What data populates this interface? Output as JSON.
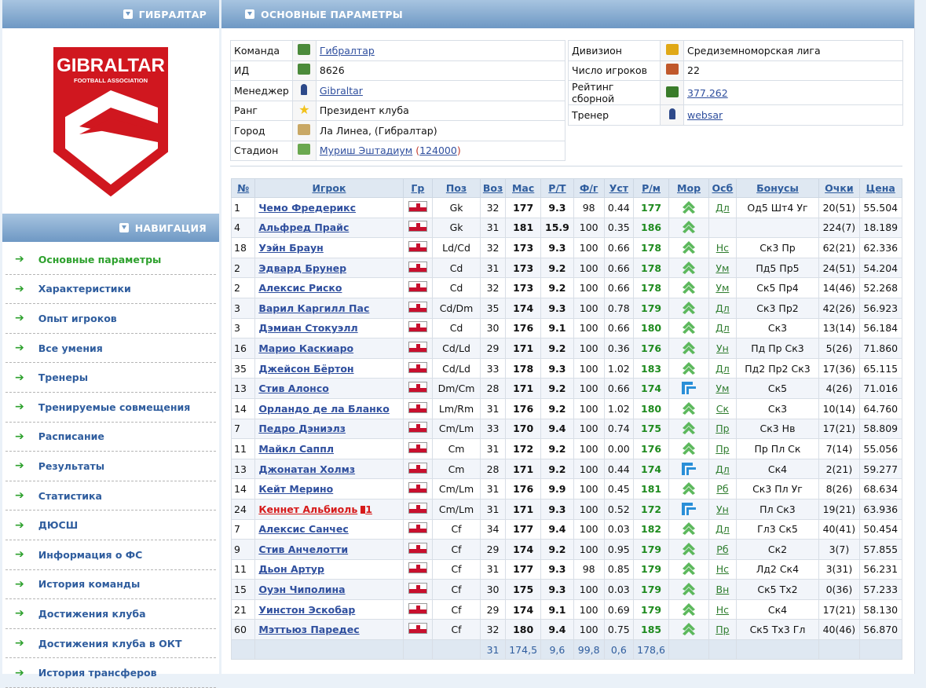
{
  "left_header": "ГИБРАЛТАР",
  "logo": {
    "line1": "GIBRALTAR",
    "line2": "FOOTBALL ASSOCIATION",
    "colors": {
      "red": "#d0171f",
      "white": "#ffffff"
    }
  },
  "nav_header": "НАВИГАЦИЯ",
  "nav": [
    "Основные параметры",
    "Характеристики",
    "Опыт игроков",
    "Все умения",
    "Тренеры",
    "Тренируемые совмещения",
    "Расписание",
    "Результаты",
    "Статистика",
    "ДЮСШ",
    "Информация о ФС",
    "История команды",
    "Достижения клуба",
    "Достижения клуба в ОКТ",
    "История трансферов"
  ],
  "right_header": "ОСНОВНЫЕ ПАРАМЕТРЫ",
  "info_left": [
    {
      "label": "Команда",
      "icon": "team-icon",
      "value": "Гибралтар",
      "link": true
    },
    {
      "label": "ИД",
      "icon": "team-icon",
      "value": "8626",
      "link": false
    },
    {
      "label": "Менеджер",
      "icon": "person-icon",
      "value": "Gibraltar",
      "link": true
    },
    {
      "label": "Ранг",
      "icon": "star-icon",
      "value": "Президент клуба",
      "link": false
    },
    {
      "label": "Город",
      "icon": "city-icon",
      "value": "Ла Линеа, (Гибралтар)",
      "link": false
    }
  ],
  "stadium": {
    "label": "Стадион",
    "icon": "stadium-icon",
    "name": "Муриш Эштадиум",
    "open": " (",
    "capacity": "124000",
    "close": ")"
  },
  "info_right": [
    {
      "label": "Дивизион",
      "icon": "trophy-icon",
      "value": "Средиземноморская лига",
      "link": false
    },
    {
      "label": "Число игроков",
      "icon": "runner-icon",
      "value": "22",
      "link": false
    },
    {
      "label": "Рейтинг сборной",
      "icon": "chart-icon",
      "value": "377.262",
      "link": true
    },
    {
      "label": "Тренер",
      "icon": "person-icon",
      "value": "websar",
      "link": true
    }
  ],
  "columns": [
    "№",
    "Игрок",
    "Гр",
    "Поз",
    "Воз",
    "Мас",
    "Р/Т",
    "Ф/г",
    "Уст",
    "Р/м",
    "Мор",
    "Осб",
    "Бонусы",
    "Очки",
    "Цена"
  ],
  "players": [
    {
      "n": "1",
      "name": "Чемо Фредерикс",
      "pos": "Gk",
      "age": "32",
      "mas": "177",
      "rt": "9.3",
      "fg": "98",
      "ust": "0.44",
      "rm": "177",
      "mor": "up",
      "osb": "Дл",
      "bonus": "Од5 Шт4 Уг",
      "pts": "20(51)",
      "price": "55.504"
    },
    {
      "n": "4",
      "name": "Альфред Прайс",
      "pos": "Gk",
      "age": "31",
      "mas": "181",
      "rt": "15.9",
      "fg": "100",
      "ust": "0.35",
      "rm": "186",
      "mor": "up",
      "osb": "",
      "bonus": "",
      "pts": "224(7)",
      "price": "18.189"
    },
    {
      "n": "18",
      "name": "Уэйн Браун",
      "pos": "Ld/Cd",
      "age": "32",
      "mas": "173",
      "rt": "9.3",
      "fg": "100",
      "ust": "0.66",
      "rm": "178",
      "mor": "up",
      "osb": "Нс",
      "bonus": "Ск3 Пр",
      "pts": "62(21)",
      "price": "62.336"
    },
    {
      "n": "2",
      "name": "Эдвард Брунер",
      "pos": "Cd",
      "age": "31",
      "mas": "173",
      "rt": "9.2",
      "fg": "100",
      "ust": "0.66",
      "rm": "178",
      "mor": "up",
      "osb": "Ум",
      "bonus": "Пд5 Пр5",
      "pts": "24(51)",
      "price": "54.204"
    },
    {
      "n": "2",
      "name": "Алексис Риско",
      "pos": "Cd",
      "age": "32",
      "mas": "173",
      "rt": "9.2",
      "fg": "100",
      "ust": "0.66",
      "rm": "178",
      "mor": "up",
      "osb": "Ум",
      "bonus": "Ск5 Пр4",
      "pts": "14(46)",
      "price": "52.268"
    },
    {
      "n": "3",
      "name": "Варил Каргилл Пас",
      "pos": "Cd/Dm",
      "age": "35",
      "mas": "174",
      "rt": "9.3",
      "fg": "100",
      "ust": "0.78",
      "rm": "179",
      "mor": "up",
      "osb": "Дл",
      "bonus": "Ск3 Пр2",
      "pts": "42(26)",
      "price": "56.923"
    },
    {
      "n": "3",
      "name": "Дэмиан Стокуэлл",
      "pos": "Cd",
      "age": "30",
      "mas": "176",
      "rt": "9.1",
      "fg": "100",
      "ust": "0.66",
      "rm": "180",
      "mor": "up",
      "osb": "Дл",
      "bonus": "Ск3",
      "pts": "13(14)",
      "price": "56.184"
    },
    {
      "n": "16",
      "name": "Марио Каскиаро",
      "pos": "Cd/Ld",
      "age": "29",
      "mas": "171",
      "rt": "9.2",
      "fg": "100",
      "ust": "0.36",
      "rm": "176",
      "mor": "up",
      "osb": "Ун",
      "bonus": "Пд Пр Ск3",
      "pts": "5(26)",
      "price": "71.860"
    },
    {
      "n": "35",
      "name": "Джейсон Бёртон",
      "pos": "Cd/Ld",
      "age": "33",
      "mas": "178",
      "rt": "9.3",
      "fg": "100",
      "ust": "1.02",
      "rm": "183",
      "mor": "up",
      "osb": "Дл",
      "bonus": "Пд2 Пр2 Ск3",
      "pts": "17(36)",
      "price": "65.115"
    },
    {
      "n": "13",
      "name": "Стив Алонсо",
      "pos": "Dm/Cm",
      "age": "28",
      "mas": "171",
      "rt": "9.2",
      "fg": "100",
      "ust": "0.66",
      "rm": "174",
      "mor": "right",
      "osb": "Ум",
      "bonus": "Ск5",
      "pts": "4(26)",
      "price": "71.016"
    },
    {
      "n": "14",
      "name": "Орландо де ла Бланко",
      "pos": "Lm/Rm",
      "age": "31",
      "mas": "176",
      "rt": "9.2",
      "fg": "100",
      "ust": "1.02",
      "rm": "180",
      "mor": "up",
      "osb": "Ск",
      "bonus": "Ск3",
      "pts": "10(14)",
      "price": "64.760"
    },
    {
      "n": "7",
      "name": "Педро Дэниэлз",
      "pos": "Cm/Lm",
      "age": "33",
      "mas": "170",
      "rt": "9.4",
      "fg": "100",
      "ust": "0.74",
      "rm": "175",
      "mor": "up",
      "osb": "Пр",
      "bonus": "Ск3 Нв",
      "pts": "17(21)",
      "price": "58.809"
    },
    {
      "n": "11",
      "name": "Майкл Саппл",
      "pos": "Cm",
      "age": "31",
      "mas": "172",
      "rt": "9.2",
      "fg": "100",
      "ust": "0.00",
      "rm": "176",
      "mor": "up",
      "osb": "Пр",
      "bonus": "Пр Пл Ск",
      "pts": "7(14)",
      "price": "55.056"
    },
    {
      "n": "13",
      "name": "Джонатан Холмз",
      "pos": "Cm",
      "age": "28",
      "mas": "171",
      "rt": "9.2",
      "fg": "100",
      "ust": "0.44",
      "rm": "174",
      "mor": "right",
      "osb": "Дл",
      "bonus": "Ск4",
      "pts": "2(21)",
      "price": "59.277"
    },
    {
      "n": "14",
      "name": "Кейт Мерино",
      "pos": "Cm/Lm",
      "age": "31",
      "mas": "176",
      "rt": "9.9",
      "fg": "100",
      "ust": "0.45",
      "rm": "181",
      "mor": "up",
      "osb": "Рб",
      "bonus": "Ск3 Пл Уг",
      "pts": "8(26)",
      "price": "68.634"
    },
    {
      "n": "24",
      "name": "Кеннет Альбиоль",
      "pos": "Cm/Lm",
      "age": "31",
      "mas": "171",
      "rt": "9.3",
      "fg": "100",
      "ust": "0.52",
      "rm": "172",
      "mor": "right",
      "osb": "Ун",
      "bonus": "Пл Ск3",
      "pts": "19(21)",
      "price": "63.936",
      "red": true,
      "cards": "1"
    },
    {
      "n": "7",
      "name": "Алексис Санчес",
      "pos": "Cf",
      "age": "34",
      "mas": "177",
      "rt": "9.4",
      "fg": "100",
      "ust": "0.03",
      "rm": "182",
      "mor": "up",
      "osb": "Дл",
      "bonus": "Гл3 Ск5",
      "pts": "40(41)",
      "price": "50.454"
    },
    {
      "n": "9",
      "name": "Стив Анчелотти",
      "pos": "Cf",
      "age": "29",
      "mas": "174",
      "rt": "9.2",
      "fg": "100",
      "ust": "0.95",
      "rm": "179",
      "mor": "up",
      "osb": "Рб",
      "bonus": "Ск2",
      "pts": "3(7)",
      "price": "57.855"
    },
    {
      "n": "11",
      "name": "Дьон Артур",
      "pos": "Cf",
      "age": "31",
      "mas": "177",
      "rt": "9.3",
      "fg": "98",
      "ust": "0.85",
      "rm": "179",
      "mor": "up",
      "osb": "Нс",
      "bonus": "Лд2 Ск4",
      "pts": "3(31)",
      "price": "56.231"
    },
    {
      "n": "15",
      "name": "Оуэн Чиполина",
      "pos": "Cf",
      "age": "30",
      "mas": "175",
      "rt": "9.3",
      "fg": "100",
      "ust": "0.03",
      "rm": "179",
      "mor": "up",
      "osb": "Вн",
      "bonus": "Ск5 Тх2",
      "pts": "0(36)",
      "price": "57.233"
    },
    {
      "n": "21",
      "name": "Уинстон Эскобар",
      "pos": "Cf",
      "age": "29",
      "mas": "174",
      "rt": "9.1",
      "fg": "100",
      "ust": "0.69",
      "rm": "179",
      "mor": "up",
      "osb": "Нс",
      "bonus": "Ск4",
      "pts": "17(21)",
      "price": "58.130"
    },
    {
      "n": "60",
      "name": "Мэттьюз Паредес",
      "pos": "Cf",
      "age": "32",
      "mas": "180",
      "rt": "9.4",
      "fg": "100",
      "ust": "0.75",
      "rm": "185",
      "mor": "up",
      "osb": "Пр",
      "bonus": "Ск5 Тх3 Гл",
      "pts": "40(46)",
      "price": "56.870"
    }
  ],
  "totals": {
    "age": "31",
    "mas": "174,5",
    "rt": "9,6",
    "fg": "99,8",
    "ust": "0,6",
    "rm": "178,6"
  }
}
